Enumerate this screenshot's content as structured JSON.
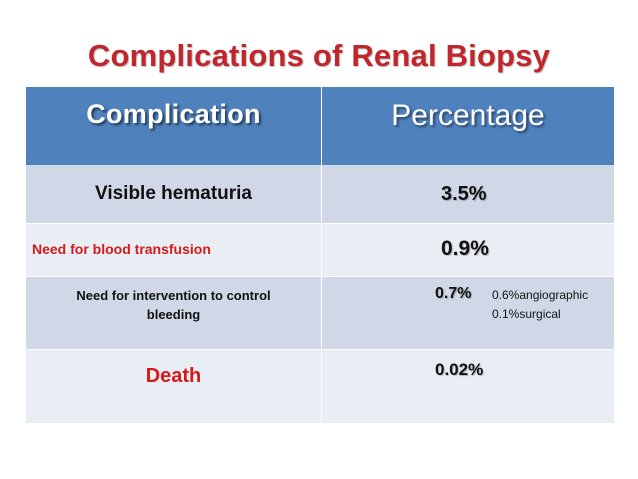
{
  "slide": {
    "title": "Complications of Renal Biopsy"
  },
  "table": {
    "headers": [
      "Complication",
      "Percentage"
    ],
    "rows": [
      {
        "complication": "Visible hematuria",
        "percentage": "3.5%"
      },
      {
        "complication": "Need for blood transfusion",
        "percentage": "0.9%"
      },
      {
        "complication_line1": "Need for intervention to control",
        "complication_line2": "bleeding",
        "percentage": "0.7%",
        "notes": [
          "0.6%angiographic",
          "0.1%surgical"
        ]
      },
      {
        "complication": "Death",
        "percentage": "0.02%"
      }
    ]
  },
  "colors": {
    "title": "#c0272d",
    "header_bg": "#4f81bd",
    "row_dark": "#d0d8e8",
    "row_light": "#e9edf4",
    "highlight_text": "#d41a1a"
  }
}
